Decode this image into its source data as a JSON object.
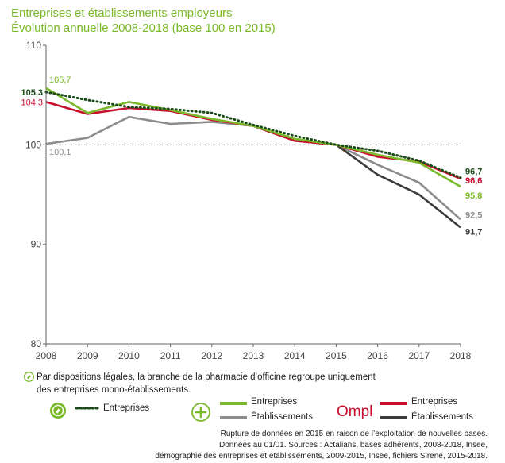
{
  "title": "Entreprises et établissements employeurs",
  "subtitle": "Évolution annuelle 2008-2018 (base 100 en 2015)",
  "note": {
    "line1": "Par dispositions légales, la branche de la pharmacie d’officine regroupe uniquement",
    "line2": "des entreprises mono-établissements."
  },
  "legend": {
    "group1": {
      "entreprises": "Entreprises"
    },
    "group2": {
      "entreprises": "Entreprises",
      "etablissements": "Établissements"
    },
    "group3": {
      "logo": "Ompl",
      "entreprises": "Entreprises",
      "etablissements": "Établissements"
    }
  },
  "source": {
    "line1": "Rupture de données en 2015 en raison de l’exploitation de nouvelles bases.",
    "line2": "Données au 01/01. Sources : Actalians, bases adhérents, 2008-2018, Insee,",
    "line3": "démographie des entreprises et établissements, 2009-2015, Insee, fichiers Sirene, 2015-2018."
  },
  "colors": {
    "green": "#7ab929",
    "dark_green": "#1a4d1a",
    "red": "#c8102e",
    "grey": "#8c8c8c",
    "dark_grey": "#3c3c3c",
    "title": "#7ab929"
  },
  "chart_data": {
    "type": "line",
    "x": [
      "2008",
      "2009",
      "2010",
      "2011",
      "2012",
      "2013",
      "2014",
      "2015",
      "2016",
      "2017",
      "2018"
    ],
    "ylim": [
      80,
      110
    ],
    "yticks": [
      80,
      90,
      100,
      110
    ],
    "reference_line": 100,
    "series": [
      {
        "name": "Entreprises",
        "group": "pharmacie",
        "color": "#1a4d1a",
        "style": "dotted",
        "values": [
          105.3,
          104.5,
          103.8,
          103.6,
          103.2,
          102.0,
          100.9,
          100.0,
          99.4,
          98.4,
          96.7
        ]
      },
      {
        "name": "Entreprises",
        "group": "branche",
        "color": "#7ab929",
        "style": "solid",
        "values": [
          105.7,
          103.2,
          104.3,
          103.5,
          102.6,
          101.9,
          100.6,
          100.0,
          99.0,
          98.2,
          95.8
        ]
      },
      {
        "name": "Établissements",
        "group": "branche",
        "color": "#8c8c8c",
        "style": "solid",
        "values": [
          100.1,
          100.7,
          102.8,
          102.1,
          102.3,
          101.9,
          100.4,
          100.0,
          98.0,
          96.2,
          92.5
        ]
      },
      {
        "name": "Entreprises",
        "group": "ompl",
        "color": "#c8102e",
        "style": "solid",
        "values": [
          104.3,
          103.1,
          103.7,
          103.4,
          102.5,
          101.9,
          100.4,
          100.0,
          98.8,
          98.3,
          96.6
        ]
      },
      {
        "name": "Établissements",
        "group": "ompl",
        "color": "#3c3c3c",
        "style": "solid",
        "values": [
          null,
          null,
          null,
          null,
          null,
          null,
          null,
          100.0,
          97.0,
          95.0,
          91.7
        ]
      }
    ],
    "data_labels": [
      {
        "text": "105,7",
        "series": 1,
        "index": 0
      },
      {
        "text": "105,3",
        "series": 0,
        "index": 0
      },
      {
        "text": "104,3",
        "series": 3,
        "index": 0
      },
      {
        "text": "100,1",
        "series": 2,
        "index": 0
      },
      {
        "text": "96,7",
        "series": 0,
        "index": 10
      },
      {
        "text": "96,6",
        "series": 3,
        "index": 10
      },
      {
        "text": "95,8",
        "series": 1,
        "index": 10
      },
      {
        "text": "92,5",
        "series": 2,
        "index": 10
      },
      {
        "text": "91,7",
        "series": 4,
        "index": 10
      }
    ]
  }
}
